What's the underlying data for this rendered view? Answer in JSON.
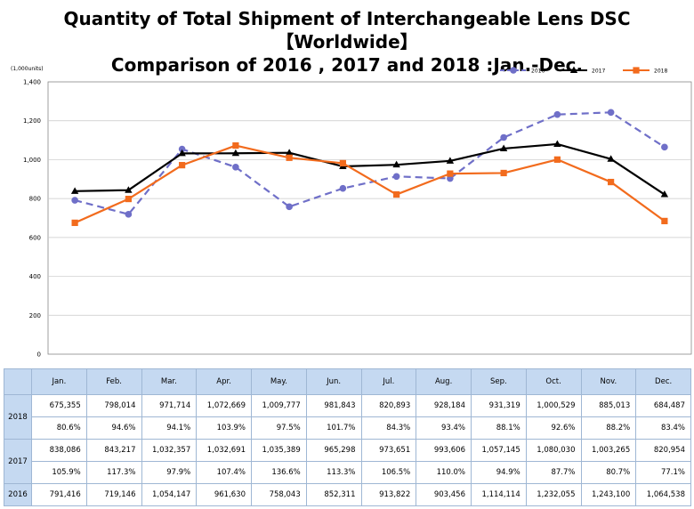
{
  "title_line1": "Quantity of Total Shipment of Interchangeable Lens DSC【Worldwide】",
  "title_line2": "Comparison of 2016 , 2017 and 2018 :Jan.-Dec.",
  "chart_data": {
    "type": "line",
    "title": "Quantity of Total Shipment of Interchangeable Lens DSC【Worldwide】 Comparison of 2016 , 2017 and 2018 :Jan.-Dec.",
    "unit_label": "(1,000units)",
    "categories": [
      "Jan.",
      "Feb.",
      "Mar.",
      "Apr.",
      "May.",
      "Jun.",
      "Jul.",
      "Aug.",
      "Sep.",
      "Oct.",
      "Nov.",
      "Dec."
    ],
    "ylim": [
      0,
      1400
    ],
    "yticks": [
      0,
      200,
      400,
      600,
      800,
      1000,
      1200,
      1400
    ],
    "ytick_labels": [
      "0",
      "200",
      "400",
      "600",
      "800",
      "1,000",
      "1,200",
      "1,400"
    ],
    "grid": "horizontal",
    "legend_position": "top-right",
    "series": [
      {
        "name": "2016",
        "color": "#6f6fc8",
        "style": "dashed",
        "marker": "circle",
        "values": [
          791.4,
          719.1,
          1054.1,
          961.6,
          758.0,
          852.3,
          913.8,
          903.5,
          1114.1,
          1232.1,
          1243.1,
          1064.5
        ]
      },
      {
        "name": "2017",
        "color": "#000000",
        "style": "solid",
        "marker": "triangle",
        "values": [
          838.1,
          843.2,
          1032.4,
          1032.7,
          1035.4,
          965.3,
          973.7,
          993.6,
          1057.1,
          1080.0,
          1003.3,
          821.0
        ]
      },
      {
        "name": "2018",
        "color": "#f26b1d",
        "style": "solid",
        "marker": "square",
        "values": [
          675.4,
          798.0,
          971.7,
          1072.7,
          1009.8,
          981.8,
          820.9,
          928.2,
          931.3,
          1000.5,
          885.0,
          684.5
        ]
      }
    ]
  },
  "table": {
    "months": [
      "Jan.",
      "Feb.",
      "Mar.",
      "Apr.",
      "May.",
      "Jun.",
      "Jul.",
      "Aug.",
      "Sep.",
      "Oct.",
      "Nov.",
      "Dec."
    ],
    "rows": [
      {
        "year": "2018",
        "units": [
          "675,355",
          "798,014",
          "971,714",
          "1,072,669",
          "1,009,777",
          "981,843",
          "820,893",
          "928,184",
          "931,319",
          "1,000,529",
          "885,013",
          "684,487"
        ],
        "pct": [
          "80.6%",
          "94.6%",
          "94.1%",
          "103.9%",
          "97.5%",
          "101.7%",
          "84.3%",
          "93.4%",
          "88.1%",
          "92.6%",
          "88.2%",
          "83.4%"
        ]
      },
      {
        "year": "2017",
        "units": [
          "838,086",
          "843,217",
          "1,032,357",
          "1,032,691",
          "1,035,389",
          "965,298",
          "973,651",
          "993,606",
          "1,057,145",
          "1,080,030",
          "1,003,265",
          "820,954"
        ],
        "pct": [
          "105.9%",
          "117.3%",
          "97.9%",
          "107.4%",
          "136.6%",
          "113.3%",
          "106.5%",
          "110.0%",
          "94.9%",
          "87.7%",
          "80.7%",
          "77.1%"
        ]
      },
      {
        "year": "2016",
        "units": [
          "791,416",
          "719,146",
          "1,054,147",
          "961,630",
          "758,043",
          "852,311",
          "913,822",
          "903,456",
          "1,114,114",
          "1,232,055",
          "1,243,100",
          "1,064,538"
        ]
      }
    ]
  }
}
